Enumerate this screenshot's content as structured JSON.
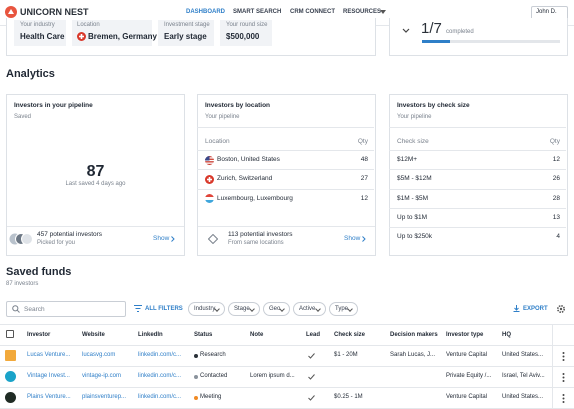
{
  "nav": {
    "brand": "UNICORN NEST",
    "items": [
      "DASHBOARD",
      "SMART SEARCH",
      "CRM CONNECT",
      "RESOURCES"
    ],
    "user": "John D."
  },
  "profile": {
    "fields": [
      {
        "label": "Your industry",
        "value": "Health Care"
      },
      {
        "label": "Location",
        "value": "Bremen, Germany"
      },
      {
        "label": "Investment stage",
        "value": "Early stage"
      },
      {
        "label": "Your round size",
        "value": "$500,000"
      }
    ],
    "progress": {
      "count": "1/7",
      "label": "completed"
    }
  },
  "analytics": {
    "heading": "Analytics",
    "pipeline": {
      "title": "Investors in your pipeline",
      "subtitle": "Saved",
      "count": 87,
      "note": "Last saved 4 days ago",
      "footer": {
        "text": "457 potential investors",
        "subtext": "Picked for you",
        "action": "Show"
      }
    },
    "by_location": {
      "title": "Investors by location",
      "subtitle": "Your pipeline",
      "columns": [
        "Location",
        "Qty"
      ],
      "rows": [
        [
          "Boston, United States",
          48
        ],
        [
          "Zurich, Switzerland",
          27
        ],
        [
          "Luxembourg, Luxembourg",
          12
        ]
      ],
      "footer": {
        "text": "113 potential investors",
        "subtext": "From same locations",
        "action": "Show"
      }
    },
    "by_check_size": {
      "title": "Investors by check size",
      "subtitle": "Your pipeline",
      "columns": [
        "Check size",
        "Qty"
      ],
      "rows": [
        [
          "$12M+",
          12
        ],
        [
          "$5M - $12M",
          26
        ],
        [
          "$1M - $5M",
          28
        ],
        [
          "Up to $1M",
          13
        ],
        [
          "Up to $250k",
          4
        ]
      ]
    }
  },
  "saved_funds": {
    "heading": "Saved funds",
    "subheading": "87 investors",
    "search_placeholder": "Search",
    "all_filters": "ALL FILTERS",
    "filters": [
      "Industry",
      "Stage",
      "Geo",
      "Active",
      "Type"
    ],
    "export": "EXPORT",
    "table": {
      "columns": [
        "Investor",
        "Website",
        "LinkedIn",
        "Status",
        "Note",
        "Lead",
        "Check size",
        "Decision makers",
        "Investor type",
        "HQ"
      ],
      "rows": [
        {
          "investor": "Lucas Venture...",
          "website": "lucasvg.com",
          "linkedin": "linkedin.com/c...",
          "status": "Research",
          "check_size": "$1 - 20M",
          "decision_makers": "Sarah Lucas, J...",
          "investor_type": "Venture Capital",
          "hq": "United States..."
        },
        {
          "investor": "Vintage Invest...",
          "website": "vintage-ip.com",
          "linkedin": "linkedin.com/c...",
          "status": "Contacted",
          "note": "Lorem ipsum d...",
          "investor_type": "Private Equity /...",
          "hq": "Israel, Tel Aviv..."
        },
        {
          "investor": "Plains Venture...",
          "website": "plainsventurep...",
          "linkedin": "linkedin.com/c...",
          "status": "Meeting",
          "check_size": "$0.25 - 1M",
          "investor_type": "Venture Capital",
          "hq": "United States..."
        }
      ]
    }
  }
}
